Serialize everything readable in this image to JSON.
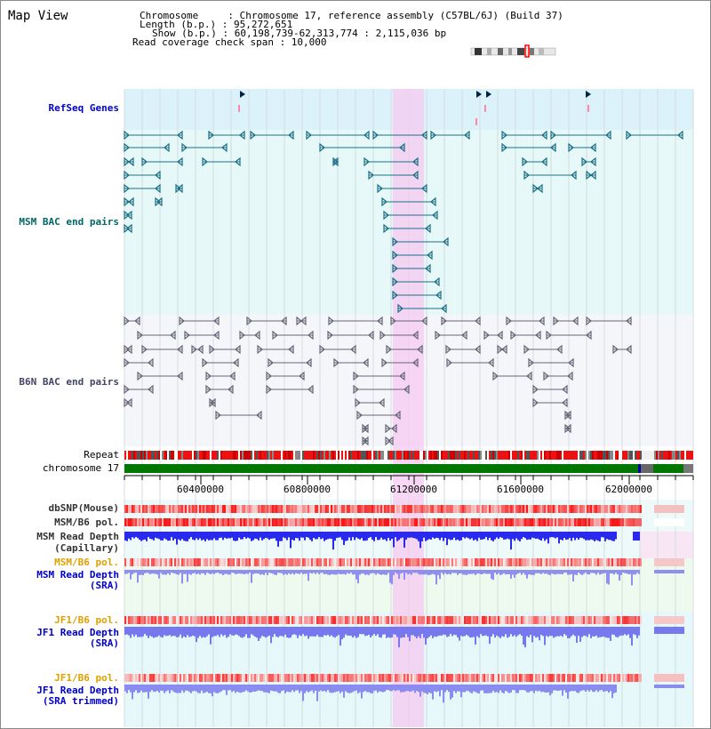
{
  "view_title": "Map View",
  "header": {
    "chromosome": "Chromosome     : Chromosome 17, reference assembly (C57BL/6J) (Build 37)",
    "length": "Length (b.p.) : 95,272,651",
    "show": "Show (b.p.) : 60,198,739-62,313,774 : 2,115,036 bp",
    "coverage": "Read coverage check span : 10,000"
  },
  "tracks": {
    "refseq": "RefSeq Genes",
    "msm_bac": "MSM BAC end pairs",
    "b6n_bac": "B6N BAC end pairs",
    "repeat": "Repeat",
    "chromosome": "chromosome 17",
    "dbsnp": "dbSNP(Mouse)",
    "msm_b6_pol_1": "MSM/B6 pol.",
    "msm_read_depth_cap": "MSM Read Depth",
    "msm_read_depth_cap_sub": "(Capillary)",
    "msm_b6_pol_2": "MSM/B6 pol.",
    "msm_read_depth_sra": "MSM Read Depth",
    "msm_read_depth_sra_sub": "(SRA)",
    "jf1_b6_pol_1": "JF1/B6 pol.",
    "jf1_read_depth_sra": "JF1 Read Depth",
    "jf1_read_depth_sra_sub": "(SRA)",
    "jf1_b6_pol_2": "JF1/B6 pol.",
    "jf1_read_depth_trim": "JF1 Read Depth",
    "jf1_read_depth_trim_sub": "(SRA trimmed)"
  },
  "axis": {
    "ticks": [
      "60400000",
      "60800000",
      "61200000",
      "61600000",
      "62000000"
    ]
  },
  "colors": {
    "label_blue": "#0000cc",
    "label_teal": "#006666",
    "label_orange": "#e0a000",
    "highlight": "#f5c9f0",
    "chromosome_green": "#007700"
  }
}
